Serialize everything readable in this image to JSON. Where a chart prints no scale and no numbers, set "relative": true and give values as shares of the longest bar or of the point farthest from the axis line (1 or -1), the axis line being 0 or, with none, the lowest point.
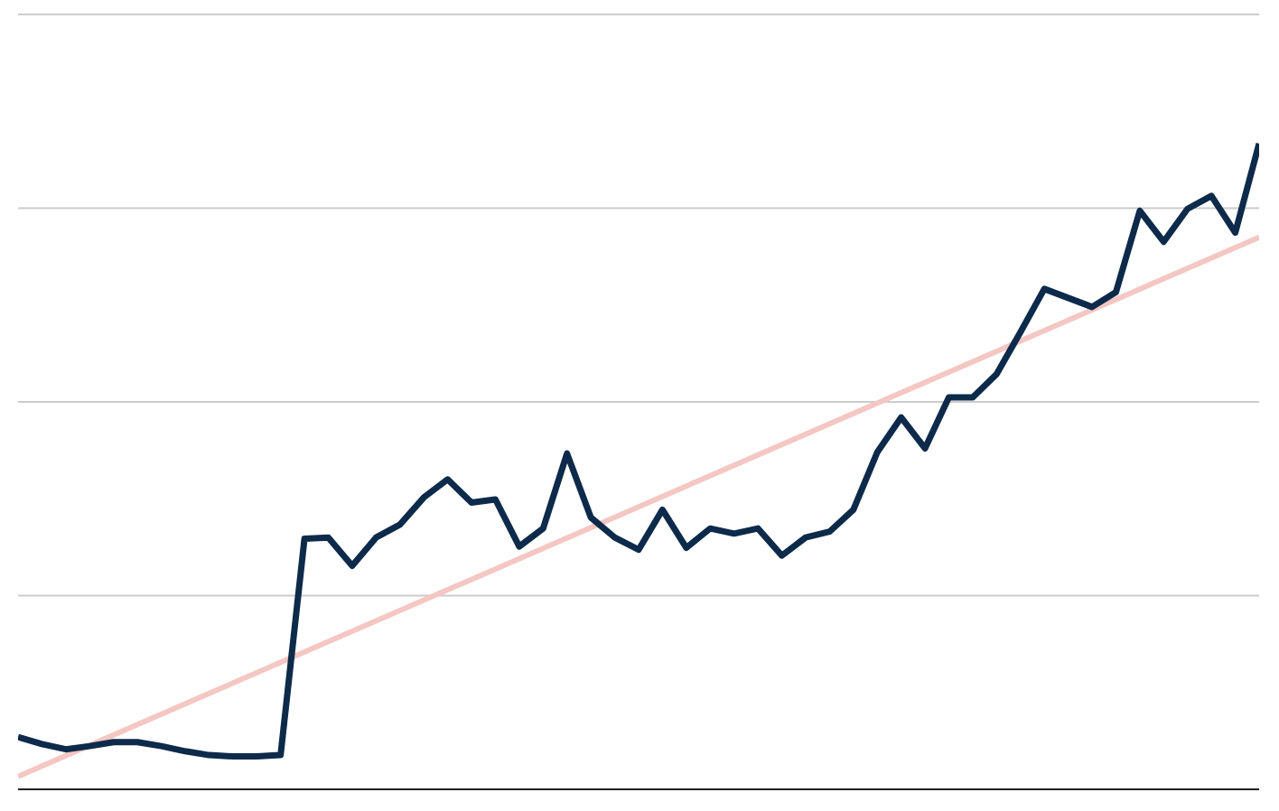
{
  "chart_data": {
    "type": "line",
    "relative": true,
    "grid": "y",
    "categories": [
      null,
      null,
      null,
      null,
      null,
      null,
      null,
      null,
      null,
      null,
      null,
      null,
      null,
      null,
      null,
      null,
      null,
      null,
      null,
      null,
      null,
      null,
      null,
      null,
      null,
      null,
      null,
      null,
      null,
      null,
      null,
      null,
      null,
      null,
      null,
      null,
      null,
      null,
      null,
      null,
      null,
      null,
      null,
      null,
      null,
      null,
      null,
      null,
      null,
      null,
      null,
      null,
      null
    ],
    "series": [
      {
        "color": "#0d2a4a",
        "values": [
          0.081,
          0.07,
          0.062,
          0.067,
          0.073,
          0.073,
          0.067,
          0.059,
          0.053,
          0.051,
          0.051,
          0.053,
          0.388,
          0.39,
          0.346,
          0.39,
          0.41,
          0.452,
          0.48,
          0.444,
          0.449,
          0.376,
          0.404,
          0.52,
          0.421,
          0.39,
          0.371,
          0.433,
          0.374,
          0.404,
          0.396,
          0.404,
          0.362,
          0.39,
          0.399,
          0.433,
          0.522,
          0.576,
          0.528,
          0.607,
          0.607,
          0.643,
          0.708,
          0.775,
          0.761,
          0.747,
          0.77,
          0.896,
          0.848,
          0.899,
          0.919,
          0.862,
          1
        ]
      },
      {
        "type": "line",
        "color": "#f4c7c3",
        "values": [
          0.02,
          null,
          null,
          null,
          null,
          null,
          null,
          null,
          null,
          null,
          null,
          null,
          null,
          null,
          null,
          null,
          null,
          null,
          null,
          null,
          null,
          null,
          null,
          null,
          null,
          null,
          null,
          null,
          null,
          null,
          null,
          null,
          null,
          null,
          null,
          null,
          null,
          null,
          null,
          null,
          null,
          null,
          null,
          null,
          null,
          null,
          null,
          null,
          null,
          null,
          null,
          null,
          0.855
        ]
      }
    ]
  }
}
